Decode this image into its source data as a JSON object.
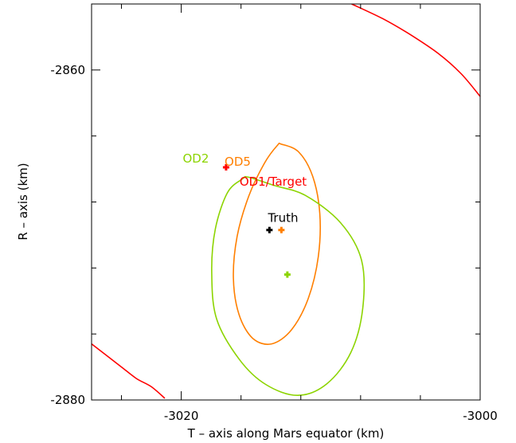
{
  "chart_data": {
    "type": "scatter",
    "title": "",
    "xlabel": "T – axis along Mars equator (km)",
    "ylabel": "R – axis (km)",
    "xlim": [
      -3026,
      -3000
    ],
    "ylim": [
      -2880,
      -2856
    ],
    "xticks": [
      {
        "value": -3020,
        "label": "-3020"
      },
      {
        "value": -3000,
        "label": "-3000"
      }
    ],
    "yticks": [
      {
        "value": -2860,
        "label": "-2860"
      },
      {
        "value": -2880,
        "label": "-2880"
      }
    ],
    "minor_xticks": [
      -3024,
      -3016,
      -3012,
      -3008,
      -3004
    ],
    "minor_yticks": [
      -2876,
      -2872,
      -2868,
      -2864
    ],
    "grid": false,
    "colors": {
      "od1": "#ff0000",
      "od2": "#8cd400",
      "od5": "#ff7f00",
      "truth": "#000000",
      "axes": "#000000"
    },
    "points": [
      {
        "id": "od1",
        "x": -3017.0,
        "y": -2865.9
      },
      {
        "id": "od5",
        "x": -3013.3,
        "y": -2869.7
      },
      {
        "id": "od2",
        "x": -3012.9,
        "y": -2872.4
      },
      {
        "id": "truth",
        "x": -3014.1,
        "y": -2869.7
      }
    ],
    "ellipses": [
      {
        "id": "od5",
        "points": [
          [
            -3013.3,
            -2864.5
          ],
          [
            -3012.13,
            -2864.98
          ],
          [
            -3011.2,
            -2866.46
          ],
          [
            -3010.73,
            -2868.7
          ],
          [
            -3010.83,
            -2871.32
          ],
          [
            -3011.5,
            -2873.84
          ],
          [
            -3012.61,
            -2875.73
          ],
          [
            -3013.95,
            -2876.6
          ],
          [
            -3015.22,
            -2876.26
          ],
          [
            -3016.14,
            -2874.81
          ],
          [
            -3016.51,
            -2872.61
          ],
          [
            -3016.26,
            -2870.08
          ],
          [
            -3015.47,
            -2867.62
          ],
          [
            -3014.44,
            -2865.66
          ],
          [
            -3013.57,
            -2864.57
          ]
        ]
      },
      {
        "id": "od2",
        "points": [
          [
            -3015.5,
            -2866.5
          ],
          [
            -3013.78,
            -2867.0
          ],
          [
            -3011.7,
            -2867.6
          ],
          [
            -3009.34,
            -2869.26
          ],
          [
            -3007.94,
            -2871.52
          ],
          [
            -3007.86,
            -2874.46
          ],
          [
            -3008.65,
            -2877.12
          ],
          [
            -3010.26,
            -2879.02
          ],
          [
            -3012.21,
            -2879.72
          ],
          [
            -3014.35,
            -2879.06
          ],
          [
            -3016.09,
            -2877.57
          ],
          [
            -3017.63,
            -2875.1
          ],
          [
            -3017.96,
            -2872.27
          ],
          [
            -3017.72,
            -2869.64
          ],
          [
            -3016.91,
            -2867.44
          ],
          [
            -3015.9,
            -2866.6
          ]
        ]
      }
    ],
    "curves": [
      {
        "id": "od1-upper",
        "points": [
          [
            -3008.6,
            -2856.0
          ],
          [
            -3006.5,
            -2856.9
          ],
          [
            -3004.6,
            -2857.9
          ],
          [
            -3002.8,
            -2859.0
          ],
          [
            -3001.3,
            -2860.2
          ],
          [
            -3000.0,
            -2861.6
          ]
        ]
      },
      {
        "id": "od1-lower",
        "points": [
          [
            -3026.0,
            -2876.6
          ],
          [
            -3025.0,
            -2877.3
          ],
          [
            -3024.0,
            -2878.0
          ],
          [
            -3023.0,
            -2878.7
          ],
          [
            -3022.0,
            -2879.2
          ],
          [
            -3021.1,
            -2879.9
          ]
        ]
      }
    ],
    "labels": [
      {
        "id": "od2",
        "text": "OD2"
      },
      {
        "id": "od5",
        "text": "OD5"
      },
      {
        "id": "od1",
        "text": "OD1/Target"
      },
      {
        "id": "truth",
        "text": "Truth"
      }
    ]
  }
}
